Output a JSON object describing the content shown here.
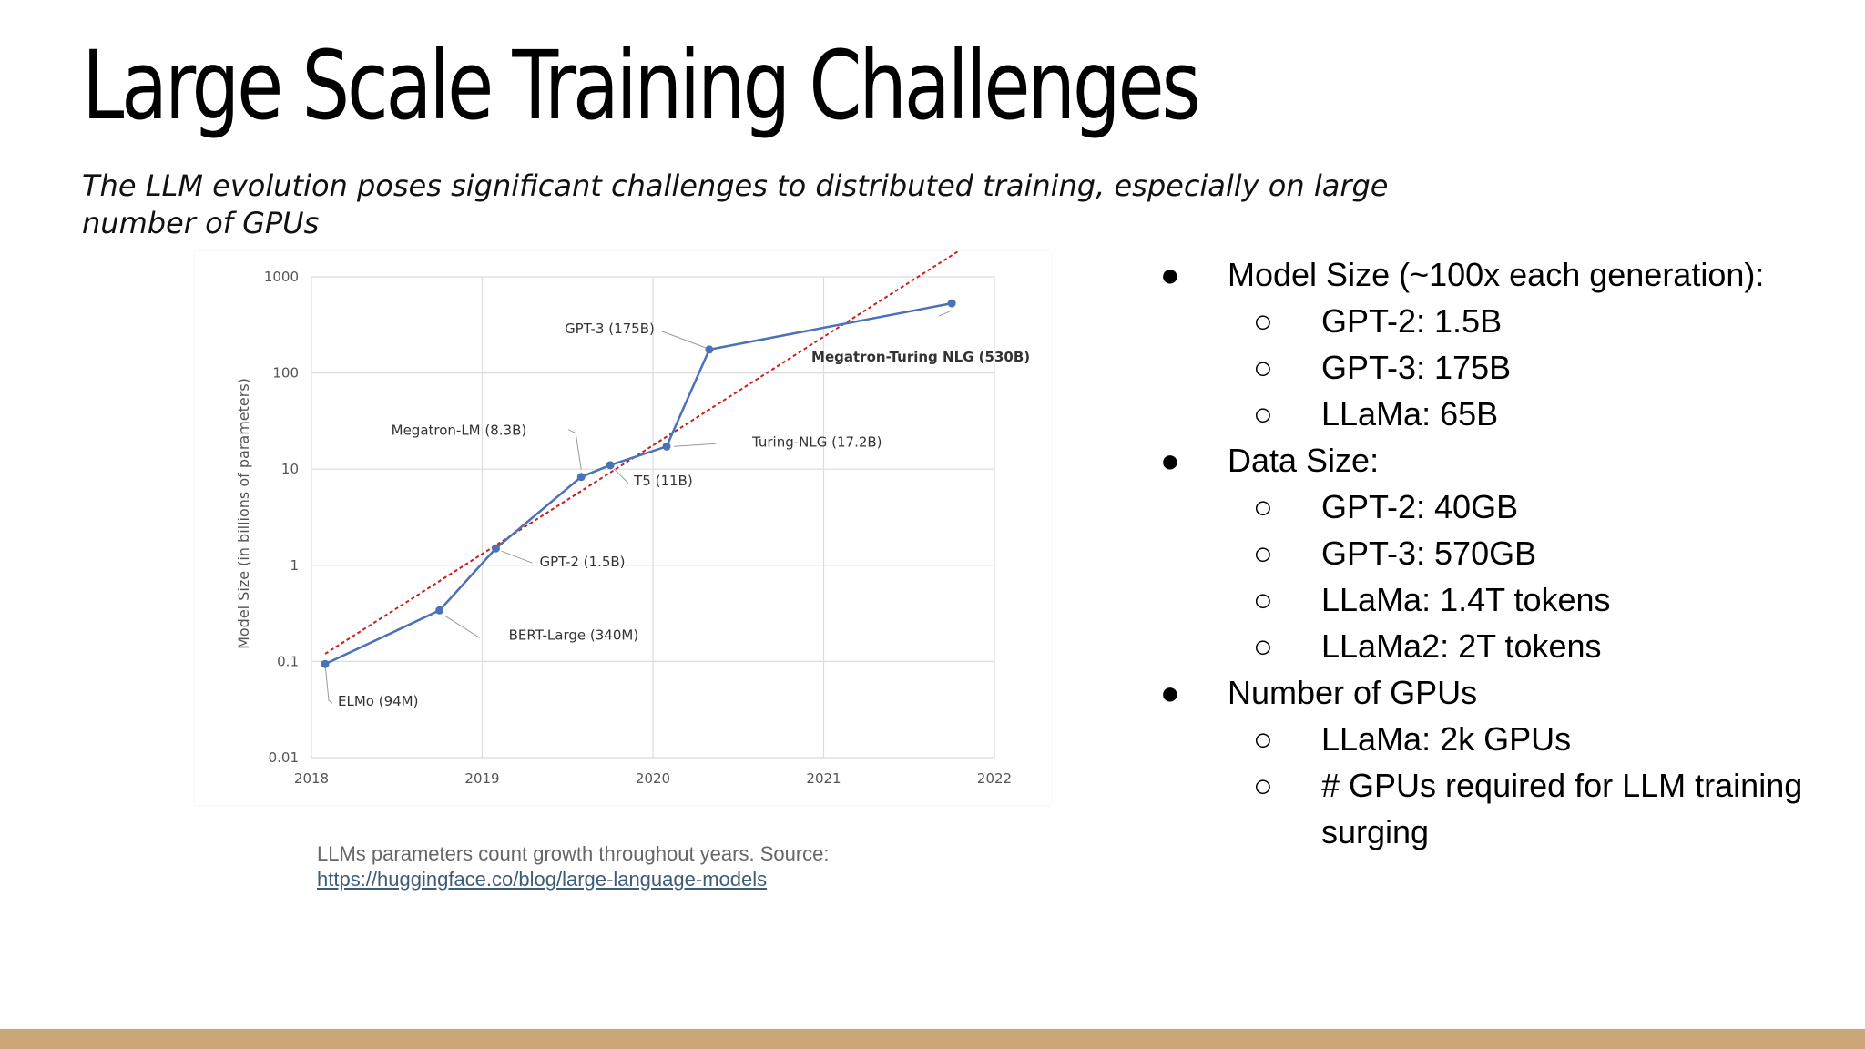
{
  "slide": {
    "title": "Large Scale Training Challenges",
    "subtitle": "The LLM evolution poses significant challenges to distributed training, especially on large number of GPUs"
  },
  "caption": {
    "text": "LLMs parameters count growth throughout years. Source:",
    "link": "https://huggingface.co/blog/large-language-models"
  },
  "bullets": [
    {
      "text": "Model Size (~100x each generation):",
      "sub": [
        "GPT-2: 1.5B",
        "GPT-3: 175B",
        "LLaMa: 65B"
      ]
    },
    {
      "text": "Data Size:",
      "sub": [
        "GPT-2: 40GB",
        "GPT-3: 570GB",
        "LLaMa: 1.4T tokens",
        "LLaMa2: 2T tokens"
      ]
    },
    {
      "text": "Number of GPUs",
      "sub": [
        "LLaMa: 2k GPUs",
        "# GPUs required for LLM training surging"
      ]
    }
  ],
  "colors": {
    "series": "#4a72b8",
    "trend": "#cc1f1f",
    "grid": "#dcdcdc",
    "footer": "#cba678"
  },
  "chart_data": {
    "type": "line",
    "ylabel": "Model Size (in billions of parameters)",
    "xlabel": "",
    "y_scale": "log",
    "ylim": [
      0.01,
      1000
    ],
    "xlim": [
      2018,
      2022
    ],
    "x_ticks": [
      2018,
      2019,
      2020,
      2021,
      2022
    ],
    "y_ticks": [
      {
        "value": 0.01,
        "label": "0.01"
      },
      {
        "value": 0.1,
        "label": "0.1"
      },
      {
        "value": 1,
        "label": "1"
      },
      {
        "value": 10,
        "label": "10"
      },
      {
        "value": 100,
        "label": "100"
      },
      {
        "value": 1000,
        "label": "1000"
      }
    ],
    "grid": true,
    "series": [
      {
        "values": [
          {
            "x": 2018.08,
            "y": 0.094,
            "label": "ELMo (94M)"
          },
          {
            "x": 2018.75,
            "y": 0.34,
            "label": "BERT-Large (340M)"
          },
          {
            "x": 2019.08,
            "y": 1.5,
            "label": "GPT-2 (1.5B)"
          },
          {
            "x": 2019.58,
            "y": 8.3,
            "label": "Megatron-LM (8.3B)"
          },
          {
            "x": 2019.75,
            "y": 11,
            "label": "T5 (11B)"
          },
          {
            "x": 2020.08,
            "y": 17.2,
            "label": "Turing-NLG (17.2B)"
          },
          {
            "x": 2020.33,
            "y": 175,
            "label": "GPT-3 (175B)"
          },
          {
            "x": 2021.75,
            "y": 530,
            "label": "Megatron-Turing NLG (530B)"
          }
        ]
      }
    ],
    "trendline": {
      "style": "dashed",
      "x": [
        2018.08,
        2021.92
      ],
      "y": [
        0.12,
        2600
      ]
    }
  }
}
